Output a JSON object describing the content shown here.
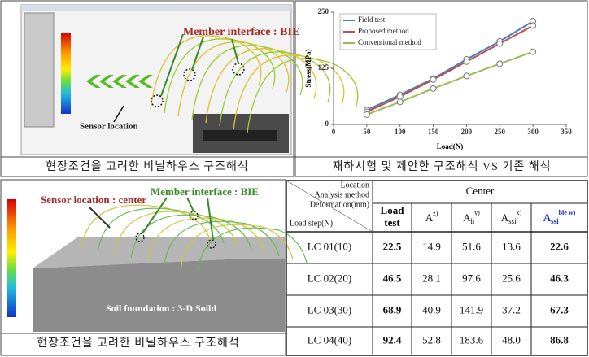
{
  "panels": [
    {
      "labels": [
        "Member interface : BIE",
        "Sensor location"
      ],
      "caption": "현장조건을 고려한 비닐하우스 구조해석"
    },
    {
      "labels": [
        "Sensor location : center",
        "Member interface : BIE",
        "Soil foundation : 3-D Soild"
      ],
      "caption": "현장조건을 고려한 비닐하우스 구조해석"
    }
  ],
  "chart_data": {
    "type": "line",
    "caption": "재하시험 및 제안한 구조해석 VS 기존 해석",
    "x_label": "Load(N)",
    "y_label": "Stress(MPa)",
    "x": [
      50,
      100,
      150,
      200,
      250,
      300
    ],
    "series": [
      {
        "name": "Field test",
        "color": "#4a7ebb",
        "values": [
          32,
          66,
          102,
          145,
          185,
          230
        ]
      },
      {
        "name": "Proposed method",
        "color": "#c0504d",
        "values": [
          28,
          62,
          100,
          140,
          180,
          220
        ]
      },
      {
        "name": "Conventional method",
        "color": "#9bbb59",
        "values": [
          22,
          50,
          80,
          108,
          135,
          162
        ]
      }
    ],
    "xlim": [
      0,
      350
    ],
    "ylim": [
      0,
      250
    ],
    "xticks": [
      0,
      50,
      100,
      150,
      200,
      250,
      300,
      350
    ],
    "yticks": [
      0,
      125,
      250
    ],
    "legend": "upper left"
  },
  "table": {
    "corner": [
      "Location",
      "Analysis method",
      "Deformation(mm)",
      "Load step(N)"
    ],
    "group": "Center",
    "columns": [
      {
        "lines": [
          "Load",
          "test"
        ]
      },
      {
        "base": "A",
        "sup": "z)"
      },
      {
        "base": "A",
        "sub": "h",
        "sup": "y)"
      },
      {
        "base": "A",
        "sub": "ssi",
        "sup": "x)"
      },
      {
        "base": "A",
        "sub": "ssi",
        "sup": "bie  w)"
      }
    ],
    "rows": [
      [
        "LC  01(10)",
        "22.5",
        "14.9",
        "51.6",
        "13.6",
        "22.6"
      ],
      [
        "LC  02(20)",
        "46.5",
        "28.1",
        "97.6",
        "25.6",
        "46.3"
      ],
      [
        "LC  03(30)",
        "68.9",
        "40.9",
        "141.9",
        "37.2",
        "67.3"
      ],
      [
        "LC  04(40)",
        "92.4",
        "52.8",
        "183.6",
        "48.0",
        "86.8"
      ]
    ]
  }
}
